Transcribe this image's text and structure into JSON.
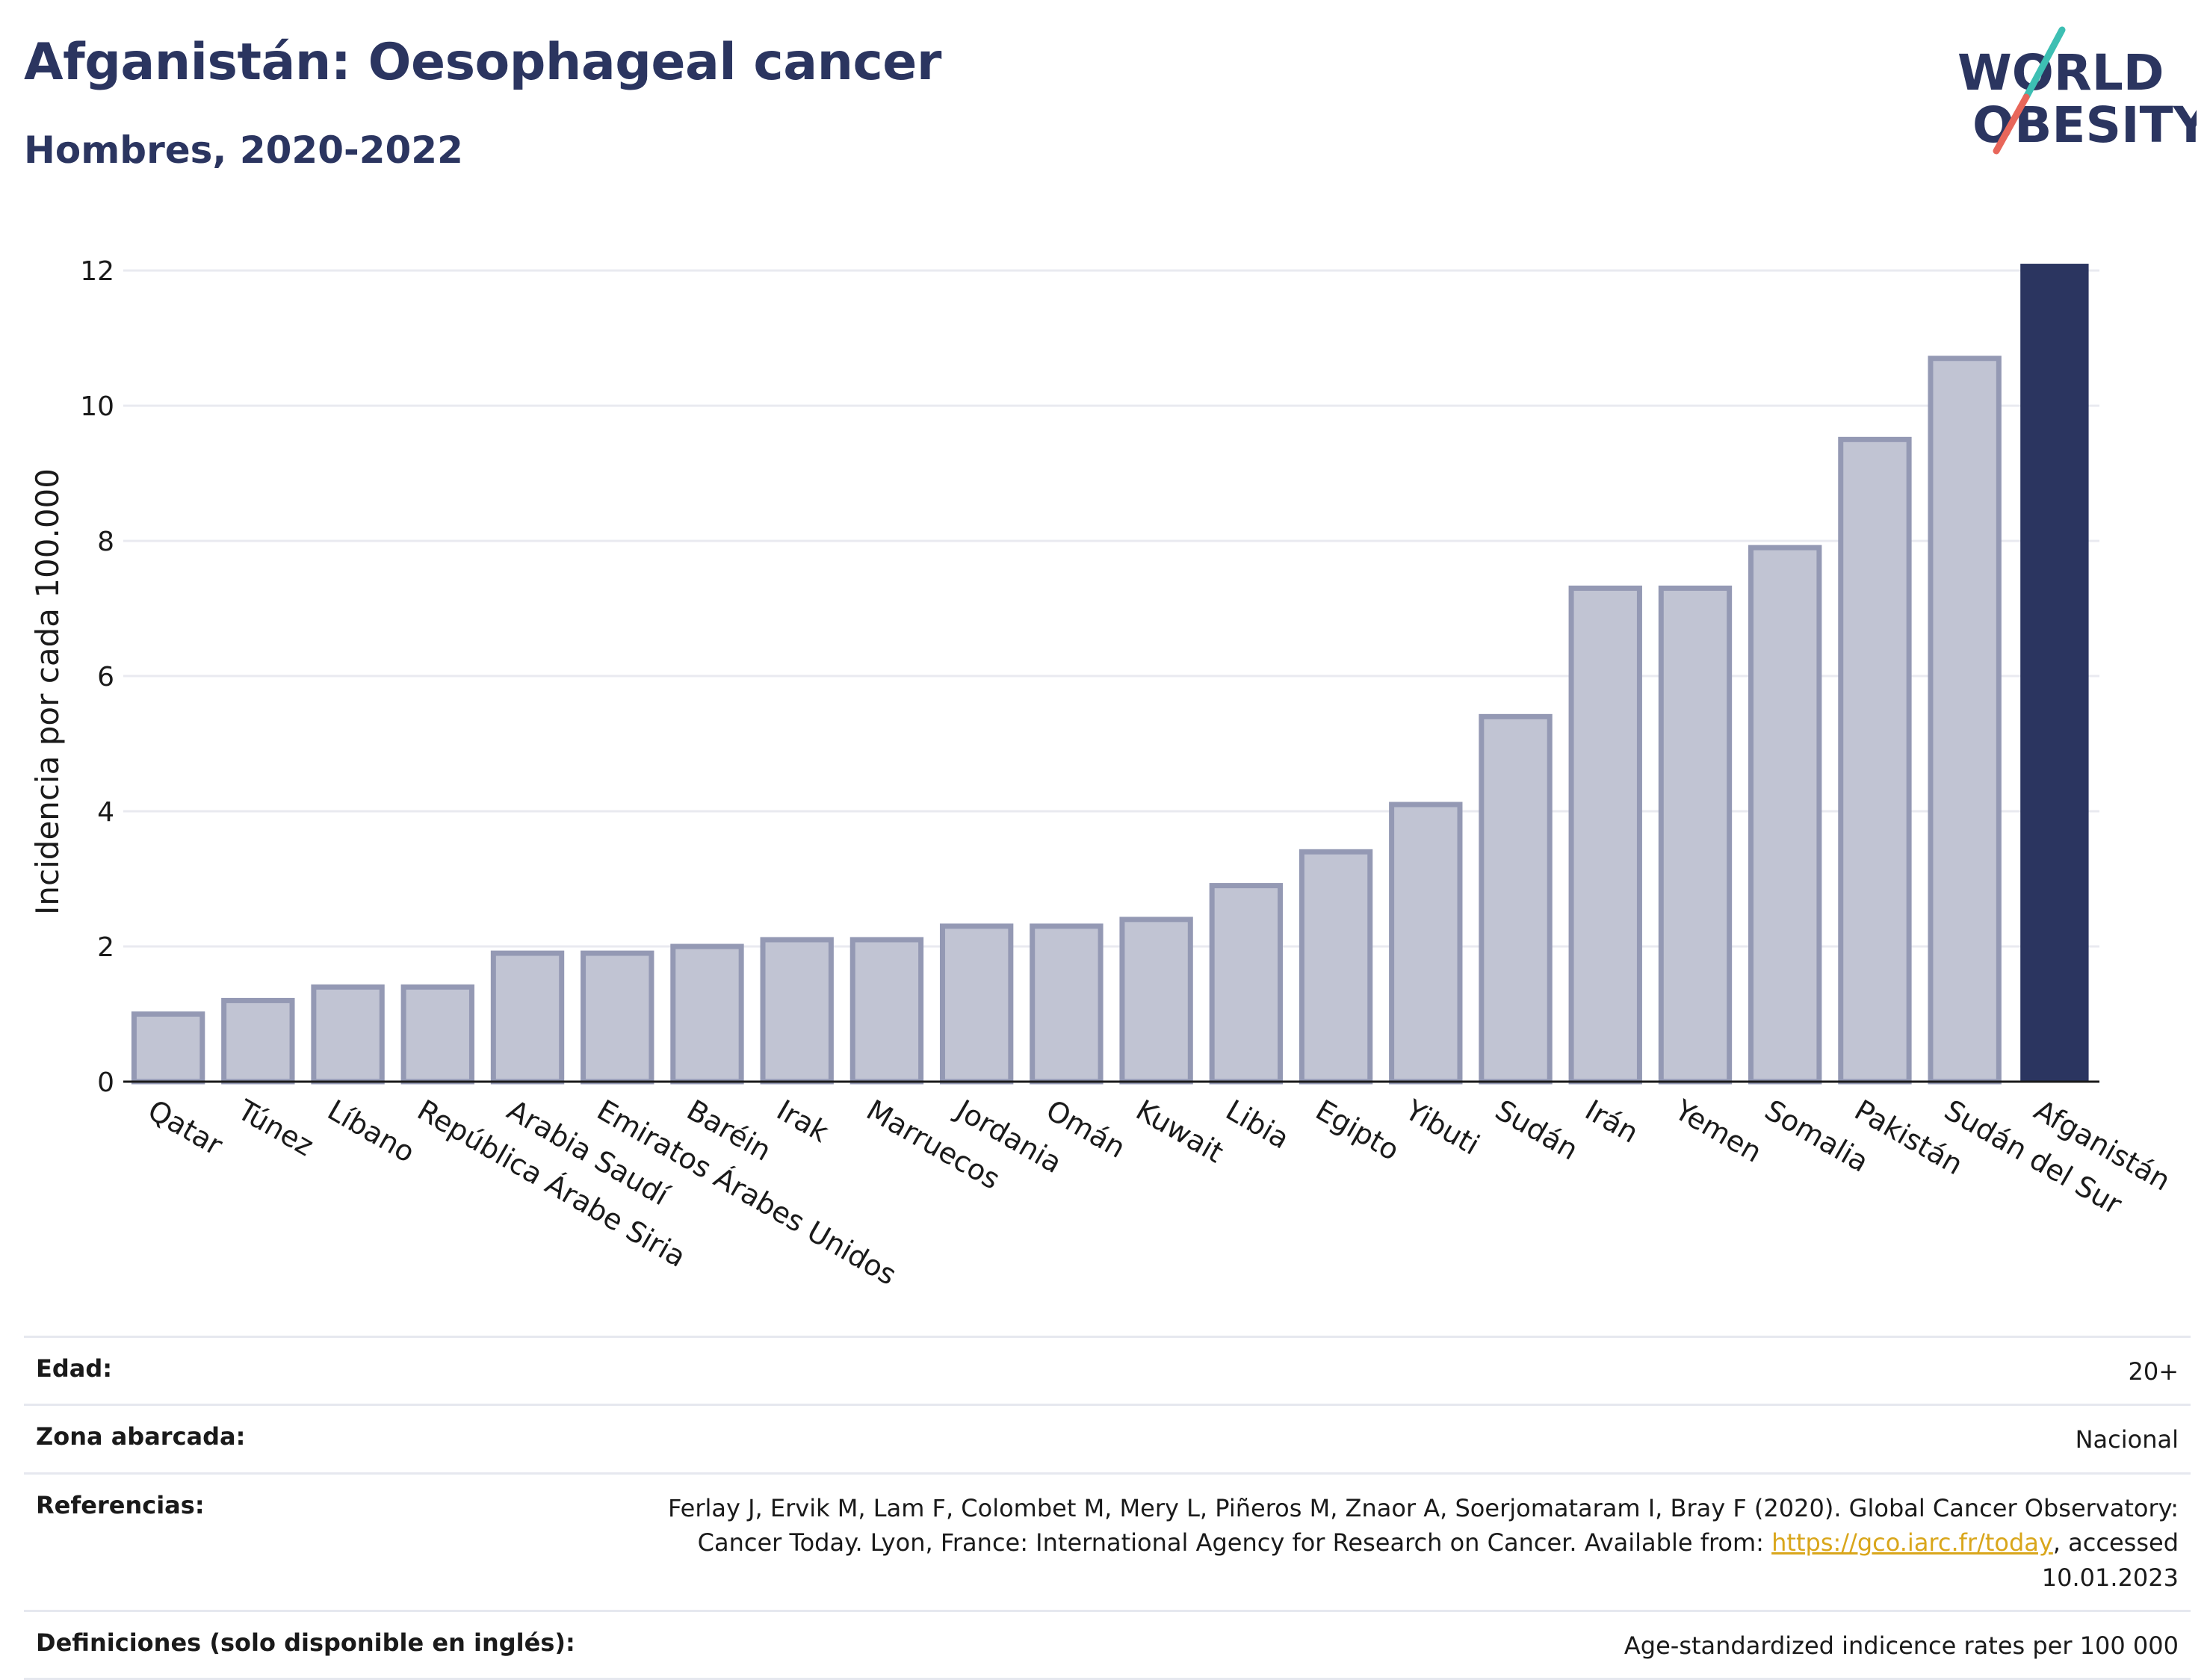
{
  "header": {
    "title": "Afganistán: Oesophageal cancer",
    "subtitle": "Hombres, 2020-2022"
  },
  "logo": {
    "line1": "WORLD",
    "line2": "OBESITY",
    "colors": {
      "text": "#2b3560",
      "slash_top": "#3dbfb3",
      "slash_bottom": "#e8665a"
    }
  },
  "chart_data": {
    "type": "bar",
    "ylabel": "Incidencia por cada 100.000",
    "xlabel": "",
    "ylim": [
      0,
      12.2
    ],
    "yticks": [
      0,
      2,
      4,
      6,
      8,
      10,
      12
    ],
    "grid": true,
    "categories": [
      "Qatar",
      "Túnez",
      "Líbano",
      "República Árabe Siria",
      "Arabia Saudí",
      "Emiratos Árabes Unidos",
      "Baréin",
      "Irak",
      "Marruecos",
      "Jordania",
      "Omán",
      "Kuwait",
      "Libia",
      "Egipto",
      "Yibuti",
      "Sudán",
      "Irán",
      "Yemen",
      "Somalia",
      "Pakistán",
      "Sudán del Sur",
      "Afganistán"
    ],
    "values": [
      1.0,
      1.2,
      1.4,
      1.4,
      1.9,
      1.9,
      2.0,
      2.1,
      2.1,
      2.3,
      2.3,
      2.4,
      2.9,
      3.4,
      4.1,
      5.4,
      7.3,
      7.3,
      7.9,
      9.5,
      10.7,
      12.1
    ],
    "highlight": "Afganistán",
    "colors": {
      "bar": "#c1c4d3",
      "bar_stroke": "#9499b4",
      "highlight": "#2b3560",
      "grid": "#e9eaf0",
      "axis": "#1a1a1a"
    }
  },
  "meta": {
    "age_label": "Edad:",
    "age_value": "20+",
    "zone_label": "Zona abarcada:",
    "zone_value": "Nacional",
    "ref_label": "Referencias:",
    "ref_text_1": "Ferlay J, Ervik M, Lam F, Colombet M, Mery L, Piñeros M, Znaor A, Soerjomataram I, Bray F (2020). Global Cancer Observatory: Cancer Today. Lyon, France: International Agency for Research on Cancer. Available from: ",
    "ref_link": "https://gco.iarc.fr/today",
    "ref_text_2": ", accessed 10.01.2023",
    "def_label": "Definiciones (solo disponible en inglés):",
    "def_value": "Age-standardized indicence rates per 100 000"
  }
}
